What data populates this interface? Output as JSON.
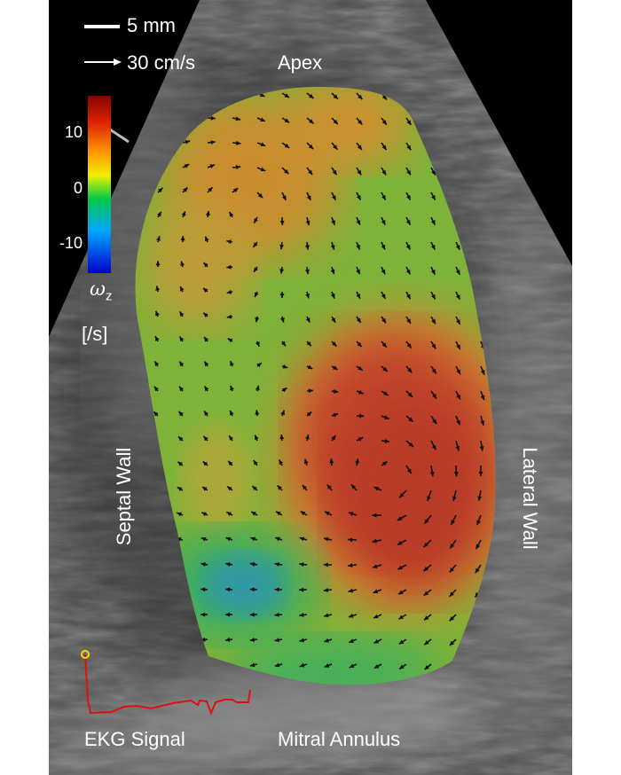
{
  "scale": {
    "length_label": "5 mm",
    "velocity_label": "30 cm/s"
  },
  "anatomy": {
    "apex": "Apex",
    "mitral_annulus": "Mitral Annulus",
    "septal_wall": "Septal Wall",
    "lateral_wall": "Lateral Wall"
  },
  "colorbar": {
    "ticks": [
      "10",
      "0",
      "-10"
    ],
    "symbol": "ω",
    "subscript": "z",
    "unit": "[/s]",
    "colors": [
      "#8b0000",
      "#d62000",
      "#ff8c00",
      "#ffff00",
      "#00d060",
      "#00a0ff",
      "#0000cc"
    ]
  },
  "ekg": {
    "label": "EKG Signal",
    "trace_color": "#e01010",
    "marker_color": "#ffd700"
  }
}
